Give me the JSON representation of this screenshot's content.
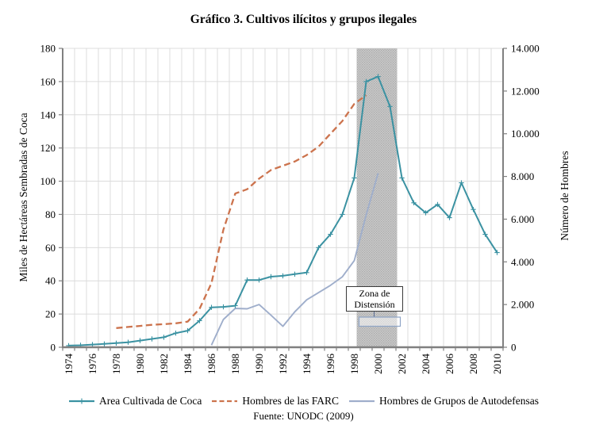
{
  "chart_data": {
    "type": "line",
    "title": "Gráfico 3. Cultivos ilícitos y grupos ilegales",
    "source": "Fuente: UNODC (2009)",
    "grid": true,
    "legend_position": "bottom",
    "x_axis": {
      "start": 1974,
      "end": 2010,
      "tick_labels": [
        "1974",
        "1976",
        "1978",
        "1980",
        "1982",
        "1984",
        "1986",
        "1988",
        "1990",
        "1992",
        "1994",
        "1996",
        "1998",
        "2000",
        "2002",
        "2004",
        "2006",
        "2008",
        "2010"
      ]
    },
    "left_axis": {
      "label": "Miles de Hectáreas Sembradas de Coca",
      "min": 0,
      "max": 180,
      "step": 20,
      "tick_labels": [
        "0",
        "20",
        "40",
        "60",
        "80",
        "100",
        "120",
        "140",
        "160",
        "180"
      ]
    },
    "right_axis": {
      "label": "Número de Hombres",
      "min": 0,
      "max": 14000,
      "step": 2000,
      "tick_labels": [
        "0",
        "2.000",
        "4.000",
        "6.000",
        "8.000",
        "10.000",
        "12.000",
        "14.000"
      ]
    },
    "annotation": {
      "label_line1": "Zona de",
      "label_line2": "Distensión",
      "band_from": 1998.2,
      "band_to": 2001.6
    },
    "colors": {
      "coca": "#3B92A2",
      "farc": "#CC734D",
      "autodefensas": "#9FAECB",
      "gridline": "#DCDCDC",
      "axis": "#808080",
      "band_base": "#CBCBCB",
      "band_dot": "#A9A9A9",
      "bracket": "#8FA5C6"
    },
    "series": [
      {
        "name": "Area Cultivada de Coca",
        "axis": "left",
        "color": "#3B92A2",
        "line": "solid",
        "marker": "plus",
        "points": [
          [
            1974,
            1
          ],
          [
            1975,
            1.2
          ],
          [
            1976,
            1.6
          ],
          [
            1977,
            2
          ],
          [
            1978,
            2.5
          ],
          [
            1979,
            3
          ],
          [
            1980,
            4
          ],
          [
            1981,
            5
          ],
          [
            1982,
            6
          ],
          [
            1983,
            8.5
          ],
          [
            1984,
            10
          ],
          [
            1985,
            16
          ],
          [
            1986,
            24
          ],
          [
            1987,
            24.3
          ],
          [
            1988,
            25
          ],
          [
            1989,
            40.5
          ],
          [
            1990,
            40.5
          ],
          [
            1991,
            42.5
          ],
          [
            1992,
            43
          ],
          [
            1993,
            44
          ],
          [
            1994,
            45
          ],
          [
            1995,
            60
          ],
          [
            1996,
            68
          ],
          [
            1997,
            80
          ],
          [
            1998,
            102
          ],
          [
            1999,
            160
          ],
          [
            2000,
            163
          ],
          [
            2001,
            145
          ],
          [
            2002,
            102
          ],
          [
            2003,
            87
          ],
          [
            2004,
            81
          ],
          [
            2005,
            86
          ],
          [
            2006,
            78
          ],
          [
            2007,
            99
          ],
          [
            2008,
            83
          ],
          [
            2009,
            68
          ],
          [
            2010,
            57
          ]
        ]
      },
      {
        "name": "Hombres de las FARC",
        "axis": "right",
        "color": "#CC734D",
        "line": "dashed",
        "marker": "none",
        "points": [
          [
            1978,
            900
          ],
          [
            1979,
            950
          ],
          [
            1980,
            1000
          ],
          [
            1981,
            1050
          ],
          [
            1982,
            1080
          ],
          [
            1983,
            1120
          ],
          [
            1984,
            1200
          ],
          [
            1985,
            1800
          ],
          [
            1986,
            3000
          ],
          [
            1987,
            5500
          ],
          [
            1988,
            7200
          ],
          [
            1989,
            7400
          ],
          [
            1990,
            7900
          ],
          [
            1991,
            8300
          ],
          [
            1992,
            8500
          ],
          [
            1993,
            8700
          ],
          [
            1994,
            9000
          ],
          [
            1995,
            9400
          ],
          [
            1996,
            10000
          ],
          [
            1997,
            10600
          ],
          [
            1998,
            11400
          ],
          [
            1999,
            11800
          ]
        ]
      },
      {
        "name": "Hombres de Grupos de Autodefensas",
        "axis": "right",
        "color": "#9FAECB",
        "line": "solid",
        "marker": "none",
        "points": [
          [
            1986,
            100
          ],
          [
            1987,
            1300
          ],
          [
            1988,
            1820
          ],
          [
            1989,
            1800
          ],
          [
            1990,
            2000
          ],
          [
            1991,
            1500
          ],
          [
            1992,
            980
          ],
          [
            1993,
            1660
          ],
          [
            1994,
            2220
          ],
          [
            1995,
            2560
          ],
          [
            1996,
            2900
          ],
          [
            1997,
            3300
          ],
          [
            1998,
            4060
          ],
          [
            1999,
            6200
          ],
          [
            2000,
            8150
          ]
        ]
      }
    ]
  }
}
